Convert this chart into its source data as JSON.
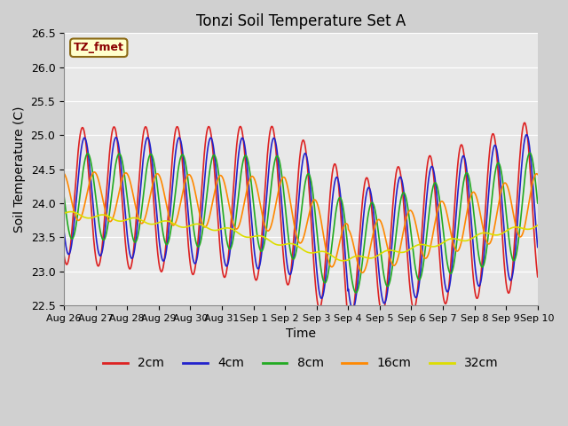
{
  "title": "Tonzi Soil Temperature Set A",
  "xlabel": "Time",
  "ylabel": "Soil Temperature (C)",
  "ylim": [
    22.5,
    26.5
  ],
  "yticks": [
    22.5,
    23.0,
    23.5,
    24.0,
    24.5,
    25.0,
    25.5,
    26.0,
    26.5
  ],
  "fig_bg": "#d0d0d0",
  "plot_bg": "#e8e8e8",
  "grid_color": "white",
  "annotation_text": "TZ_fmet",
  "annotation_bg": "#ffffcc",
  "annotation_text_color": "#8b0000",
  "annotation_border_color": "#8b6914",
  "lines": [
    {
      "label": "2cm",
      "color": "#dd2222",
      "lw": 1.2
    },
    {
      "label": "4cm",
      "color": "#2222cc",
      "lw": 1.2
    },
    {
      "label": "8cm",
      "color": "#22aa22",
      "lw": 1.2
    },
    {
      "label": "16cm",
      "color": "#ff8800",
      "lw": 1.2
    },
    {
      "label": "32cm",
      "color": "#dddd00",
      "lw": 1.2
    }
  ],
  "xtick_labels": [
    "Aug 26",
    "Aug 27",
    "Aug 28",
    "Aug 29",
    "Aug 30",
    "Aug 31",
    "Sep 1",
    "Sep 2",
    "Sep 3",
    "Sep 4",
    "Sep 5",
    "Sep 6",
    "Sep 7",
    "Sep 8",
    "Sep 9",
    "Sep 10"
  ],
  "n_days": 15,
  "samples_per_day": 96,
  "base_mean": 24.1,
  "amp_2cm": 1.0,
  "amp_4cm": 0.85,
  "amp_8cm": 0.62,
  "amp_16cm": 0.35,
  "amp_32cm": 0.07,
  "phase_2cm_hrs": 0.0,
  "phase_4cm_hrs": 1.5,
  "phase_8cm_hrs": 4.0,
  "phase_16cm_hrs": 9.0,
  "phase_32cm_hrs": 18.0
}
